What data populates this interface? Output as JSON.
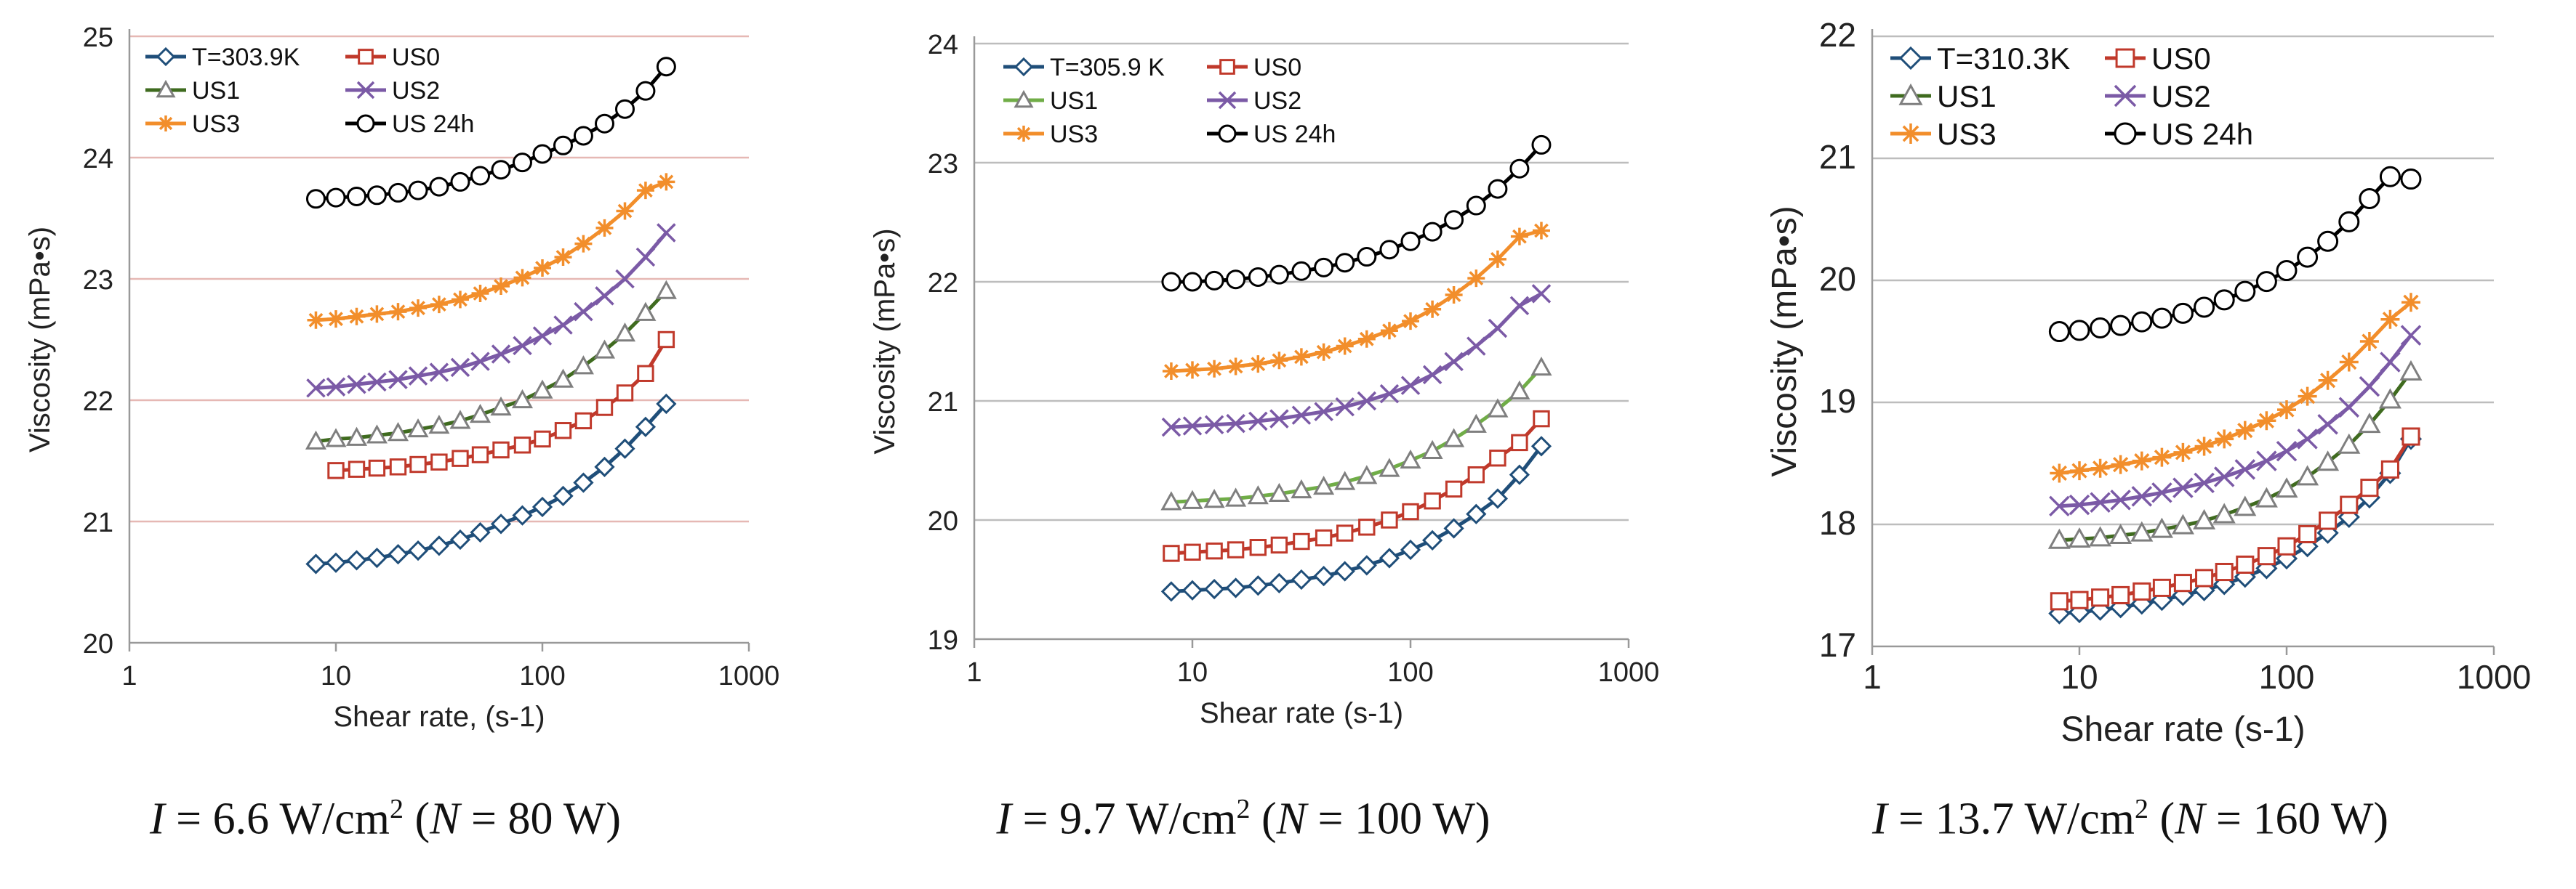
{
  "chart_data": [
    {
      "type": "line",
      "xscale": "log",
      "xlim": [
        1,
        1000
      ],
      "ylim": [
        20,
        25
      ],
      "ylabel": "Viscosity (mPa•s)",
      "xlabel": "Shear rate, (s-1)",
      "x_ticks": [
        "1",
        "10",
        "100",
        "1000"
      ],
      "y_ticks": [
        "20",
        "21",
        "22",
        "23",
        "24",
        "25"
      ],
      "legend": "top-left",
      "gridlines": "horizontal",
      "caption": {
        "I_label": "I",
        "I_text": " = 6.6 W/cm",
        "I_sup": "2",
        "N_open": " (",
        "N_label": "N",
        "N_text": " = 80 W)"
      },
      "x": [
        8,
        10,
        12.6,
        15.8,
        20,
        25,
        31.6,
        40,
        50,
        63,
        80,
        100,
        126,
        158,
        200,
        251,
        316,
        398
      ],
      "series": [
        {
          "name": "T=303.9K",
          "color": "#1f4e79",
          "marker": "diamond",
          "values": [
            20.65,
            20.66,
            20.68,
            20.7,
            20.73,
            20.76,
            20.8,
            20.85,
            20.91,
            20.98,
            21.05,
            21.12,
            21.21,
            21.32,
            21.45,
            21.6,
            21.78,
            21.97
          ]
        },
        {
          "name": "US0",
          "color": "#c0392b",
          "marker": "square",
          "values": [
            null,
            21.42,
            21.43,
            21.44,
            21.45,
            21.47,
            21.49,
            21.52,
            21.55,
            21.59,
            21.63,
            21.68,
            21.75,
            21.83,
            21.94,
            22.06,
            22.22,
            22.5
          ]
        },
        {
          "name": "US1",
          "color": "#3f6b1f",
          "marker": "triangle",
          "values": [
            21.66,
            21.68,
            21.69,
            21.71,
            21.73,
            21.76,
            21.79,
            21.83,
            21.88,
            21.94,
            22.0,
            22.08,
            22.17,
            22.28,
            22.41,
            22.55,
            22.72,
            22.9
          ]
        },
        {
          "name": "US2",
          "color": "#7b5aa6",
          "marker": "x",
          "values": [
            22.1,
            22.11,
            22.13,
            22.15,
            22.17,
            22.2,
            22.23,
            22.27,
            22.32,
            22.38,
            22.45,
            22.53,
            22.62,
            22.73,
            22.86,
            23.0,
            23.18,
            23.38
          ]
        },
        {
          "name": "US3",
          "color": "#f28e2b",
          "marker": "star",
          "values": [
            22.66,
            22.67,
            22.69,
            22.71,
            22.73,
            22.76,
            22.79,
            22.83,
            22.88,
            22.94,
            23.01,
            23.09,
            23.18,
            23.29,
            23.42,
            23.56,
            23.73,
            23.8
          ]
        },
        {
          "name": "US 24h",
          "color": "#000000",
          "marker": "circle",
          "values": [
            23.66,
            23.67,
            23.68,
            23.69,
            23.71,
            23.73,
            23.76,
            23.8,
            23.85,
            23.9,
            23.96,
            24.03,
            24.1,
            24.18,
            24.28,
            24.4,
            24.55,
            24.75
          ]
        }
      ]
    },
    {
      "type": "line",
      "xscale": "log",
      "xlim": [
        1,
        1000
      ],
      "ylim": [
        19,
        24
      ],
      "ylabel": "Viscosity (mPa•s)",
      "xlabel": "Shear rate (s-1)",
      "x_ticks": [
        "1",
        "10",
        "100",
        "1000"
      ],
      "y_ticks": [
        "19",
        "20",
        "21",
        "22",
        "23",
        "24"
      ],
      "legend": "top-left",
      "gridlines": "horizontal",
      "caption": {
        "I_label": "I",
        "I_text": " = 9.7 W/cm",
        "I_sup": "2",
        "N_open": " (",
        "N_label": "N",
        "N_text": " = 100 W)"
      },
      "x": [
        8,
        10,
        12.6,
        15.8,
        20,
        25,
        31.6,
        40,
        50,
        63,
        80,
        100,
        126,
        158,
        200,
        251,
        316,
        398
      ],
      "series": [
        {
          "name": "T=305.9 K",
          "color": "#1f4e79",
          "marker": "diamond",
          "values": [
            19.4,
            19.41,
            19.42,
            19.43,
            19.45,
            19.47,
            19.5,
            19.53,
            19.57,
            19.62,
            19.68,
            19.75,
            19.83,
            19.93,
            20.05,
            20.18,
            20.38,
            20.62
          ]
        },
        {
          "name": "US0",
          "color": "#c0392b",
          "marker": "square",
          "values": [
            19.72,
            19.73,
            19.74,
            19.75,
            19.77,
            19.79,
            19.82,
            19.85,
            19.89,
            19.94,
            20.0,
            20.07,
            20.16,
            20.26,
            20.38,
            20.52,
            20.65,
            20.85
          ]
        },
        {
          "name": "US1",
          "color": "#70ad47",
          "marker": "triangle",
          "values": [
            20.15,
            20.16,
            20.17,
            20.18,
            20.2,
            20.22,
            20.25,
            20.28,
            20.32,
            20.37,
            20.43,
            20.5,
            20.58,
            20.68,
            20.8,
            20.93,
            21.08,
            21.28
          ]
        },
        {
          "name": "US2",
          "color": "#7b5aa6",
          "marker": "x",
          "values": [
            20.78,
            20.79,
            20.8,
            20.81,
            20.83,
            20.85,
            20.88,
            20.91,
            20.95,
            21.0,
            21.06,
            21.13,
            21.22,
            21.33,
            21.46,
            21.61,
            21.8,
            21.9
          ]
        },
        {
          "name": "US3",
          "color": "#f28e2b",
          "marker": "star",
          "values": [
            21.25,
            21.26,
            21.27,
            21.29,
            21.31,
            21.34,
            21.37,
            21.41,
            21.46,
            21.52,
            21.59,
            21.67,
            21.77,
            21.89,
            22.03,
            22.19,
            22.38,
            22.43
          ]
        },
        {
          "name": "US 24h",
          "color": "#000000",
          "marker": "circle",
          "values": [
            22.0,
            22.0,
            22.01,
            22.02,
            22.04,
            22.06,
            22.09,
            22.12,
            22.16,
            22.21,
            22.27,
            22.34,
            22.42,
            22.52,
            22.64,
            22.78,
            22.95,
            23.15
          ]
        }
      ]
    },
    {
      "type": "line",
      "xscale": "log",
      "xlim": [
        1,
        1000
      ],
      "ylim": [
        17,
        22
      ],
      "ylabel": "Viscosity (mPa•s)",
      "xlabel": "Shear rate (s-1)",
      "x_ticks": [
        "1",
        "10",
        "100",
        "1000"
      ],
      "y_ticks": [
        "17",
        "18",
        "19",
        "20",
        "21",
        "22"
      ],
      "legend": "top-left",
      "gridlines": "horizontal",
      "caption": {
        "I_label": "I",
        "I_text": " = 13.7 W/cm",
        "I_sup": "2",
        "N_open": " (",
        "N_label": "N",
        "N_text": " = 160 W)"
      },
      "x": [
        8,
        10,
        12.6,
        15.8,
        20,
        25,
        31.6,
        40,
        50,
        63,
        80,
        100,
        126,
        158,
        200,
        251,
        316,
        398
      ],
      "series": [
        {
          "name": "T=310.3K",
          "color": "#1f4e79",
          "marker": "diamond",
          "values": [
            17.27,
            17.28,
            17.3,
            17.32,
            17.35,
            17.38,
            17.42,
            17.46,
            17.51,
            17.57,
            17.64,
            17.72,
            17.82,
            17.93,
            18.06,
            18.22,
            18.42,
            18.7
          ]
        },
        {
          "name": "US0",
          "color": "#c0392b",
          "marker": "square",
          "values": [
            17.37,
            17.38,
            17.4,
            17.42,
            17.45,
            17.48,
            17.52,
            17.56,
            17.61,
            17.67,
            17.74,
            17.82,
            17.92,
            18.03,
            18.16,
            18.3,
            18.45,
            18.72
          ]
        },
        {
          "name": "US1",
          "color": "#3f6b1f",
          "marker": "triangle",
          "values": [
            17.87,
            17.88,
            17.89,
            17.91,
            17.93,
            17.96,
            17.99,
            18.03,
            18.08,
            18.14,
            18.21,
            18.29,
            18.39,
            18.51,
            18.65,
            18.82,
            19.02,
            19.25
          ]
        },
        {
          "name": "US2",
          "color": "#7b5aa6",
          "marker": "x",
          "values": [
            18.15,
            18.16,
            18.18,
            18.2,
            18.23,
            18.26,
            18.3,
            18.34,
            18.39,
            18.45,
            18.52,
            18.6,
            18.7,
            18.82,
            18.96,
            19.13,
            19.33,
            19.55
          ]
        },
        {
          "name": "US3",
          "color": "#f28e2b",
          "marker": "star",
          "values": [
            18.42,
            18.44,
            18.46,
            18.49,
            18.52,
            18.55,
            18.59,
            18.64,
            18.7,
            18.77,
            18.85,
            18.94,
            19.05,
            19.18,
            19.33,
            19.5,
            19.68,
            19.82
          ]
        },
        {
          "name": "US 24h",
          "color": "#000000",
          "marker": "circle",
          "values": [
            19.58,
            19.59,
            19.61,
            19.63,
            19.66,
            19.69,
            19.73,
            19.78,
            19.84,
            19.91,
            19.99,
            20.08,
            20.19,
            20.32,
            20.48,
            20.67,
            20.85,
            20.83
          ]
        }
      ]
    }
  ]
}
